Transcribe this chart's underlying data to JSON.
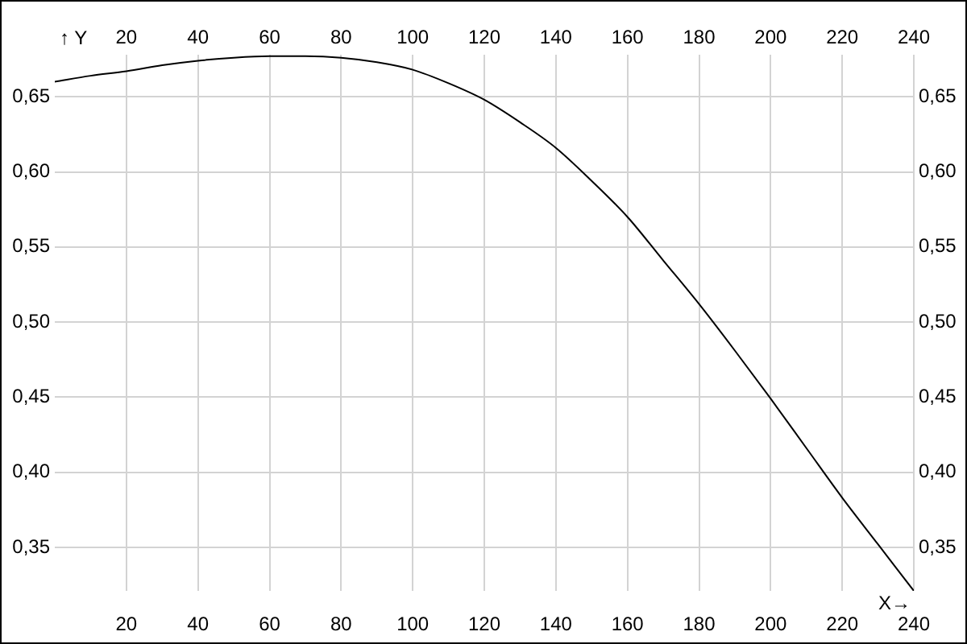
{
  "chart_data": {
    "type": "line",
    "xlabel": "X→",
    "ylabel": "↑ Y",
    "x": [
      0,
      10,
      20,
      30,
      40,
      50,
      60,
      70,
      80,
      90,
      100,
      110,
      120,
      130,
      140,
      150,
      160,
      170,
      180,
      190,
      200,
      210,
      220,
      230,
      240
    ],
    "series": [
      {
        "color": "#000000",
        "values": [
          0.66,
          0.664,
          0.667,
          0.671,
          0.674,
          0.676,
          0.677,
          0.677,
          0.676,
          0.673,
          0.668,
          0.659,
          0.648,
          0.633,
          0.616,
          0.594,
          0.57,
          0.541,
          0.512,
          0.481,
          0.449,
          0.416,
          0.383,
          0.352,
          0.321
        ]
      }
    ],
    "xlim": [
      0,
      240
    ],
    "xticks": [
      20,
      40,
      60,
      80,
      100,
      120,
      140,
      160,
      180,
      200,
      220,
      240
    ],
    "x2lim": [
      0,
      240
    ],
    "x2ticks": [
      20,
      40,
      60,
      80,
      100,
      120,
      140,
      160,
      180,
      200,
      220,
      240
    ],
    "ylim": [
      0.321,
      0.678
    ],
    "yticks": [
      {
        "value": 0.35,
        "label": "0,35"
      },
      {
        "value": 0.4,
        "label": "0,40"
      },
      {
        "value": 0.45,
        "label": "0,45"
      },
      {
        "value": 0.5,
        "label": "0,50"
      },
      {
        "value": 0.55,
        "label": "0,55"
      },
      {
        "value": 0.6,
        "label": "0,60"
      },
      {
        "value": 0.65,
        "label": "0,65"
      }
    ],
    "y2lim": [
      0.321,
      0.678
    ],
    "y2ticks": [
      {
        "value": 0.35,
        "label": "0,35"
      },
      {
        "value": 0.4,
        "label": "0,40"
      },
      {
        "value": 0.45,
        "label": "0,45"
      },
      {
        "value": 0.5,
        "label": "0,50"
      },
      {
        "value": 0.55,
        "label": "0,55"
      },
      {
        "value": 0.6,
        "label": "0,60"
      },
      {
        "value": 0.65,
        "label": "0,65"
      }
    ],
    "grid": true,
    "marker": "none",
    "line_style": "solid",
    "legend": false
  }
}
